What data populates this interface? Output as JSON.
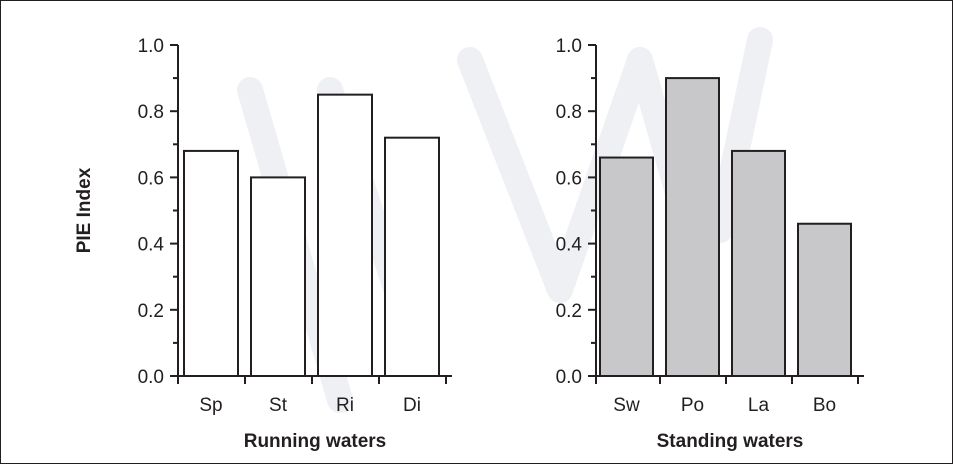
{
  "chart_data": [
    {
      "type": "bar",
      "categories": [
        "Sp",
        "St",
        "Ri",
        "Di"
      ],
      "values": [
        0.68,
        0.6,
        0.85,
        0.72
      ],
      "xlabel": "Running waters",
      "ylabel": "PIE Index",
      "ylim": [
        0,
        1.0
      ],
      "yticks": [
        "0.0",
        "0.2",
        "0.4",
        "0.6",
        "0.8",
        "1.0"
      ],
      "bar_color": "#ffffff",
      "grid": false
    },
    {
      "type": "bar",
      "categories": [
        "Sw",
        "Po",
        "La",
        "Bo"
      ],
      "values": [
        0.66,
        0.9,
        0.68,
        0.46
      ],
      "xlabel": "Standing waters",
      "ylabel": "",
      "ylim": [
        0,
        1.0
      ],
      "yticks": [
        "0.0",
        "0.2",
        "0.4",
        "0.6",
        "0.8",
        "1.0"
      ],
      "bar_color": "#c8c8ca",
      "grid": false
    }
  ]
}
